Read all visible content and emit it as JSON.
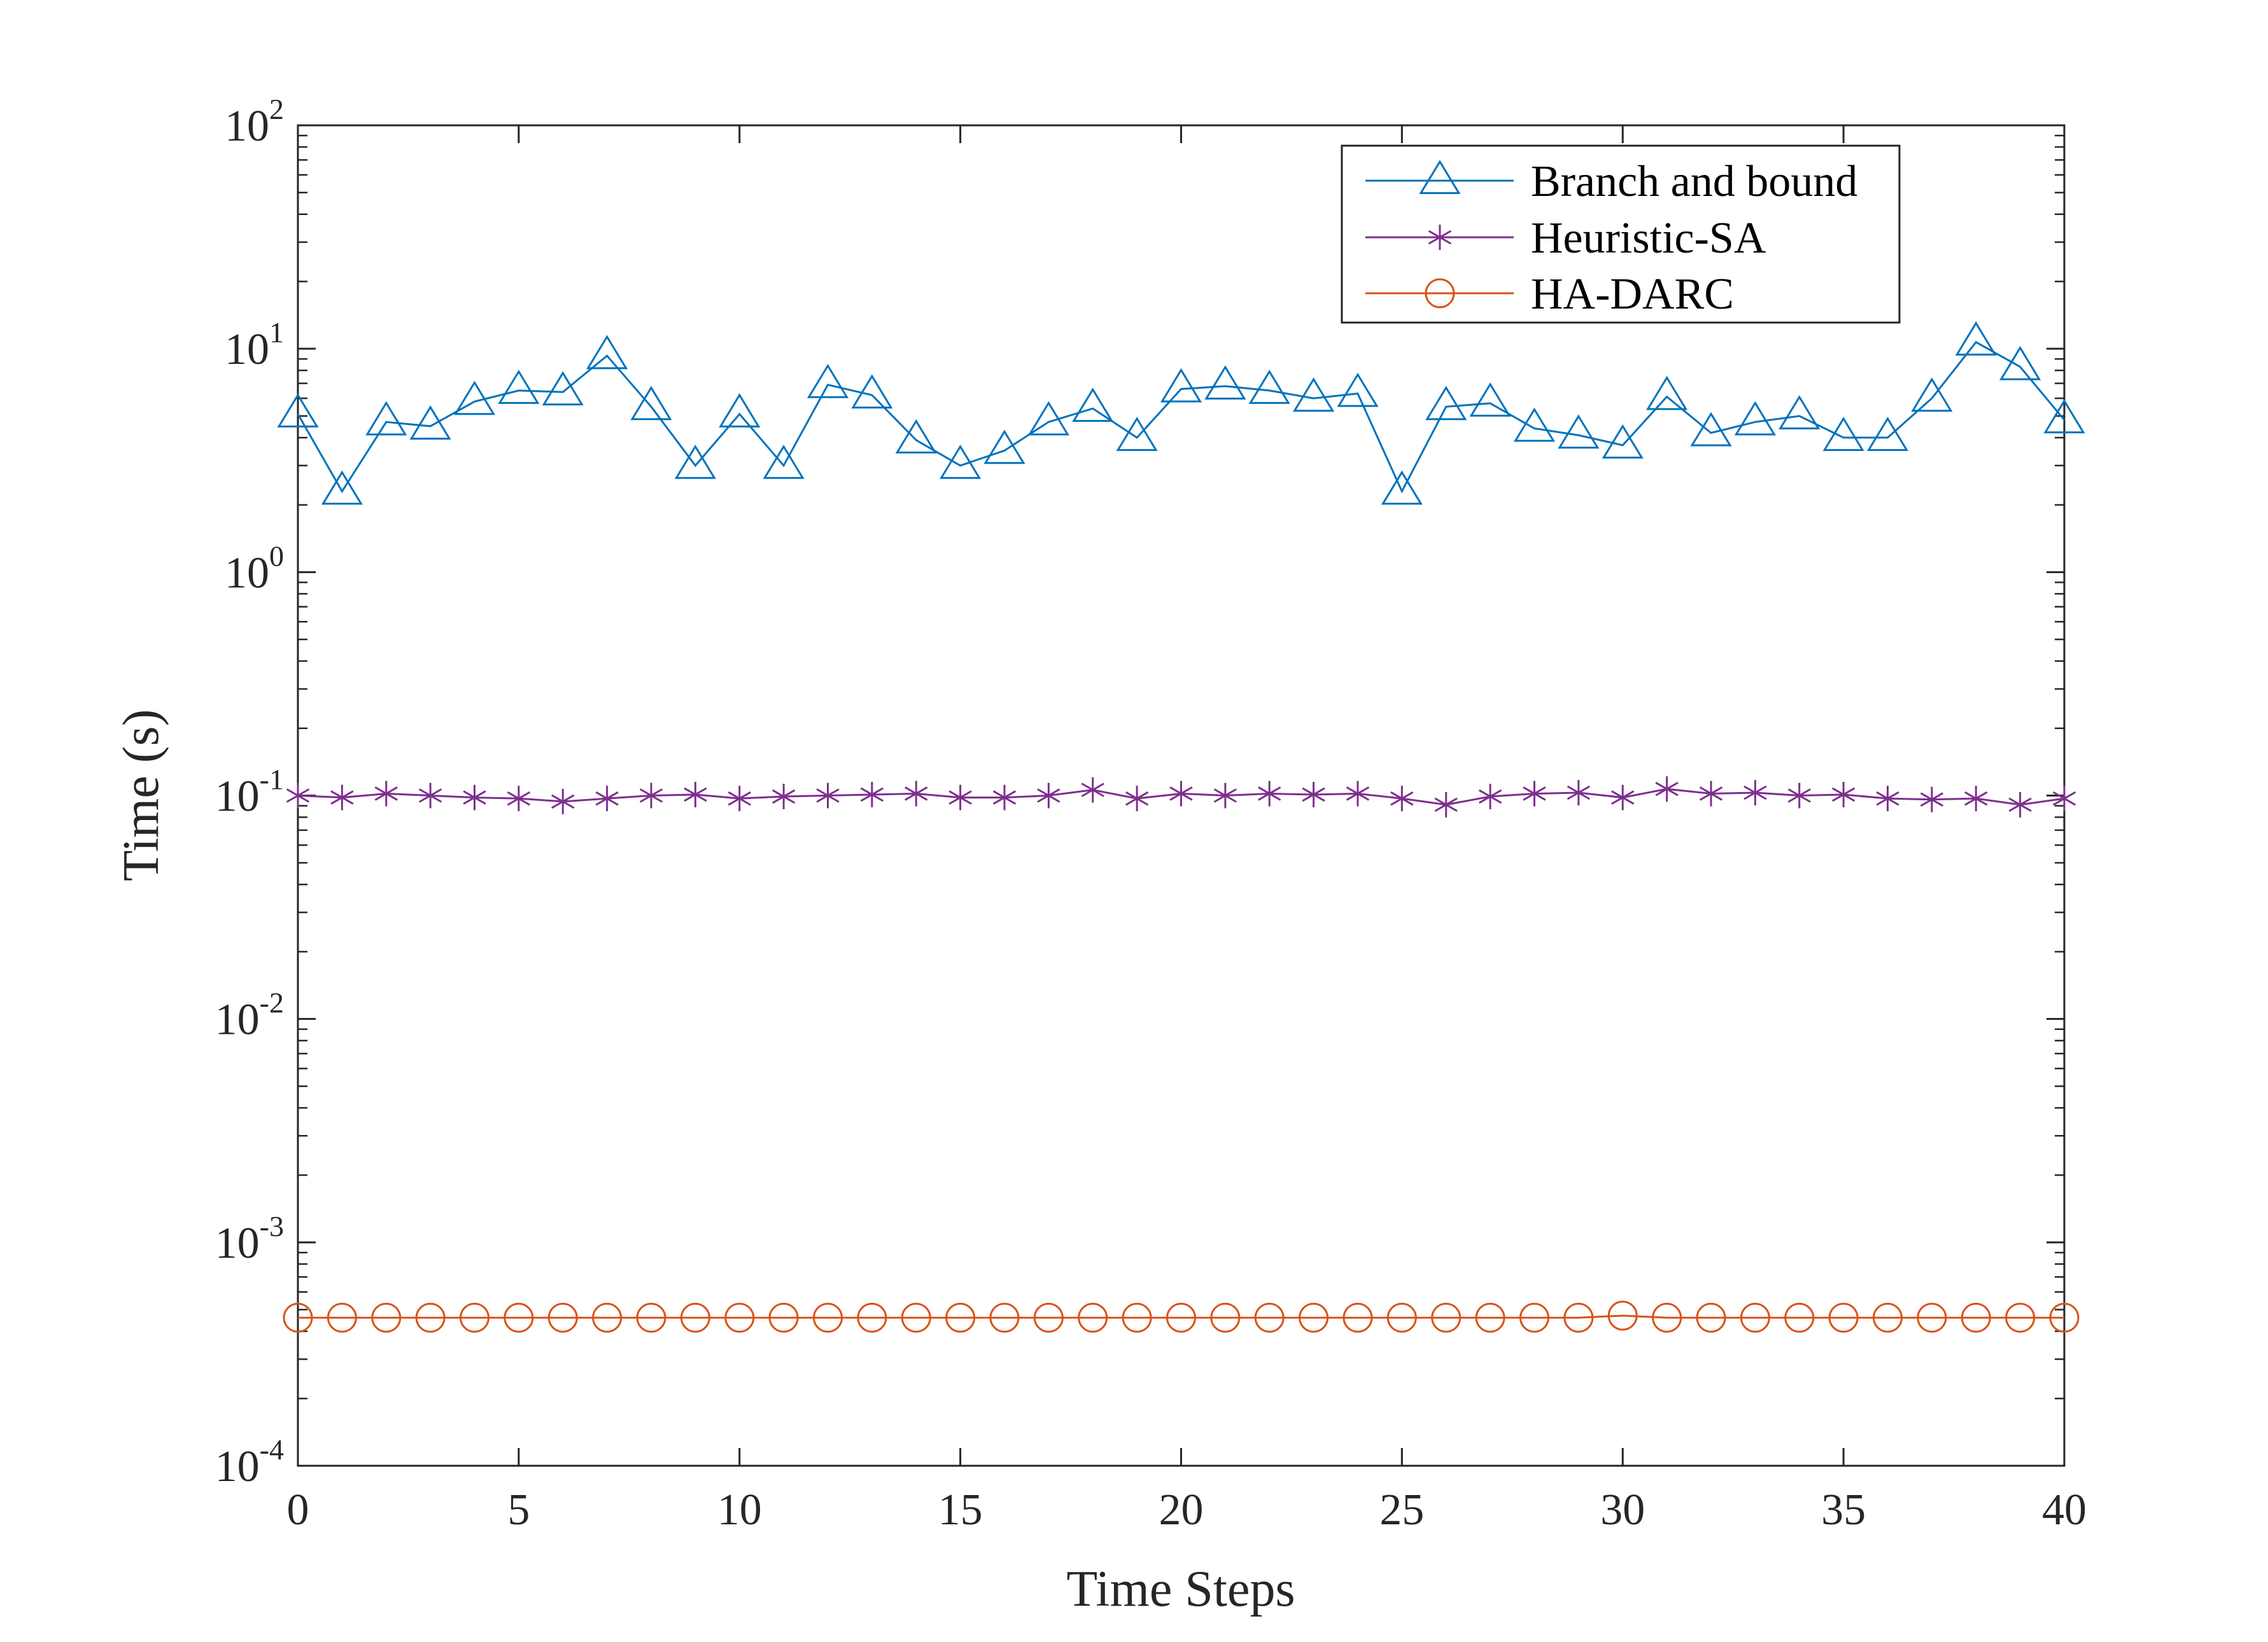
{
  "chart_data": {
    "type": "line",
    "title": "",
    "xlabel": "Time Steps",
    "ylabel": "Time (s)",
    "xlim": [
      0,
      40
    ],
    "ylim": [
      0.0001,
      100
    ],
    "yscale": "log",
    "grid": false,
    "legend_position": "top-right",
    "x_ticks": [
      0,
      5,
      10,
      15,
      20,
      25,
      30,
      35,
      40
    ],
    "x_tick_labels": [
      "0",
      "5",
      "10",
      "15",
      "20",
      "25",
      "30",
      "35",
      "40"
    ],
    "y_ticks": [
      0.0001,
      0.001,
      0.01,
      0.1,
      1,
      10,
      100
    ],
    "y_tick_labels": [
      {
        "base": "10",
        "exp": "-4"
      },
      {
        "base": "10",
        "exp": "-3"
      },
      {
        "base": "10",
        "exp": "-2"
      },
      {
        "base": "10",
        "exp": "-1"
      },
      {
        "base": "10",
        "exp": "0"
      },
      {
        "base": "10",
        "exp": "1"
      },
      {
        "base": "10",
        "exp": "2"
      }
    ],
    "x": [
      0,
      1,
      2,
      3,
      4,
      5,
      6,
      7,
      8,
      9,
      10,
      11,
      12,
      13,
      14,
      15,
      16,
      17,
      18,
      19,
      20,
      21,
      22,
      23,
      24,
      25,
      26,
      27,
      28,
      29,
      30,
      31,
      32,
      33,
      34,
      35,
      36,
      37,
      38,
      39,
      40
    ],
    "series": [
      {
        "name": "Branch and bound",
        "color": "#0072BD",
        "marker": "triangle",
        "values": [
          5.1,
          2.3,
          4.7,
          4.5,
          5.8,
          6.5,
          6.4,
          9.3,
          5.5,
          3.0,
          5.1,
          3.0,
          6.9,
          6.2,
          3.9,
          3.0,
          3.5,
          4.7,
          5.4,
          4.0,
          6.6,
          6.8,
          6.5,
          6.0,
          6.3,
          2.3,
          5.5,
          5.7,
          4.4,
          4.1,
          3.7,
          6.1,
          4.2,
          4.7,
          5.0,
          4.0,
          4.0,
          6.0,
          10.7,
          8.3,
          4.8
        ]
      },
      {
        "name": "Heuristic-SA",
        "color": "#7E2F8E",
        "marker": "asterisk",
        "values": [
          0.1,
          0.098,
          0.102,
          0.1,
          0.098,
          0.097,
          0.094,
          0.097,
          0.1,
          0.101,
          0.097,
          0.099,
          0.1,
          0.101,
          0.102,
          0.098,
          0.098,
          0.1,
          0.106,
          0.097,
          0.102,
          0.1,
          0.102,
          0.101,
          0.102,
          0.097,
          0.091,
          0.099,
          0.102,
          0.103,
          0.098,
          0.107,
          0.102,
          0.103,
          0.1,
          0.101,
          0.097,
          0.096,
          0.097,
          0.091,
          0.097
        ]
      },
      {
        "name": "HA-DARC",
        "color": "#D95319",
        "marker": "circle",
        "values": [
          0.00046,
          0.00046,
          0.00046,
          0.00046,
          0.00046,
          0.00046,
          0.00046,
          0.00046,
          0.00046,
          0.00046,
          0.00046,
          0.00046,
          0.00046,
          0.00046,
          0.00046,
          0.00046,
          0.00046,
          0.00046,
          0.00046,
          0.00046,
          0.00046,
          0.00046,
          0.00046,
          0.00046,
          0.00046,
          0.00046,
          0.00046,
          0.00046,
          0.00046,
          0.00046,
          0.00047,
          0.00046,
          0.00046,
          0.00046,
          0.00046,
          0.00046,
          0.00046,
          0.00046,
          0.00046,
          0.00046,
          0.00046
        ]
      }
    ]
  }
}
